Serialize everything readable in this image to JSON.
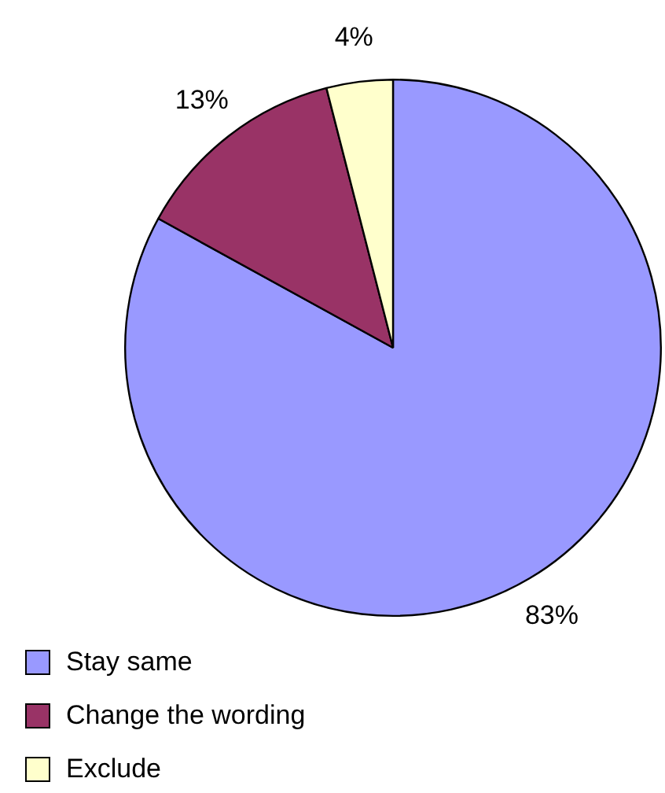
{
  "chart_data": {
    "type": "pie",
    "categories": [
      "Stay same",
      "Change the wording",
      "Exclude"
    ],
    "values": [
      83,
      13,
      4
    ],
    "colors": [
      "#9999ff",
      "#993366",
      "#ffffcc"
    ],
    "value_labels": [
      "83%",
      "13%",
      "4%"
    ],
    "legend": "bottom left"
  }
}
